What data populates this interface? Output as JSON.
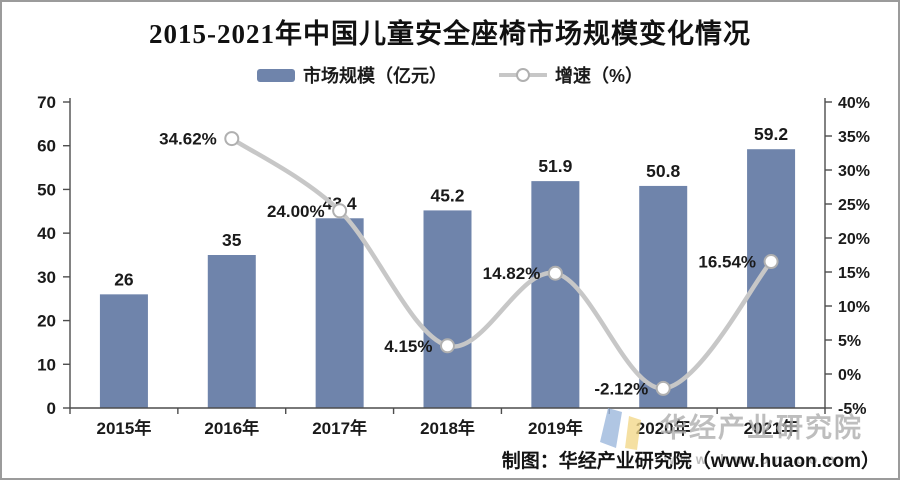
{
  "title": "2015-2021年中国儿童安全座椅市场规模变化情况",
  "caption": "制图：华经产业研究院（www.huaon.com）",
  "watermark": {
    "name": "华经产业研究院",
    "url": "www.huaon.com"
  },
  "colors": {
    "bar": "#6f84ab",
    "line": "#c7c7c7",
    "marker_fill": "#ffffff",
    "marker_stroke": "#b0b0b0",
    "axis": "#4d4d4d",
    "text": "#1a1a1a",
    "watermark_blue": "#9db8dd",
    "watermark_yellow": "#f3d98b"
  },
  "chart_data": {
    "type": "combo",
    "title": "2015-2021年中国儿童安全座椅市场规模变化情况",
    "categories": [
      "2015年",
      "2016年",
      "2017年",
      "2018年",
      "2019年",
      "2020年",
      "2021年"
    ],
    "series": [
      {
        "name": "市场规模（亿元）",
        "type": "bar",
        "axis": "left",
        "values": [
          26,
          35,
          43.4,
          45.2,
          51.9,
          50.8,
          59.2
        ],
        "labels": [
          "26",
          "35",
          "43.4",
          "45.2",
          "51.9",
          "50.8",
          "59.2"
        ]
      },
      {
        "name": "增速（%）",
        "type": "line",
        "axis": "right",
        "x_start_index": 1,
        "values": [
          34.62,
          24.0,
          4.15,
          14.82,
          -2.12,
          16.54
        ],
        "labels": [
          "34.62%",
          "24.00%",
          "4.15%",
          "14.82%",
          "-2.12%",
          "16.54%"
        ]
      }
    ],
    "left_axis": {
      "min": 0,
      "max": 70,
      "step": 10,
      "ticks": [
        "0",
        "10",
        "20",
        "30",
        "40",
        "50",
        "60",
        "70"
      ]
    },
    "right_axis": {
      "min": -5,
      "max": 40,
      "step": 5,
      "ticks": [
        "-5%",
        "0%",
        "5%",
        "10%",
        "15%",
        "20%",
        "25%",
        "30%",
        "35%",
        "40%"
      ]
    },
    "grid": false,
    "legend_position": "top"
  }
}
